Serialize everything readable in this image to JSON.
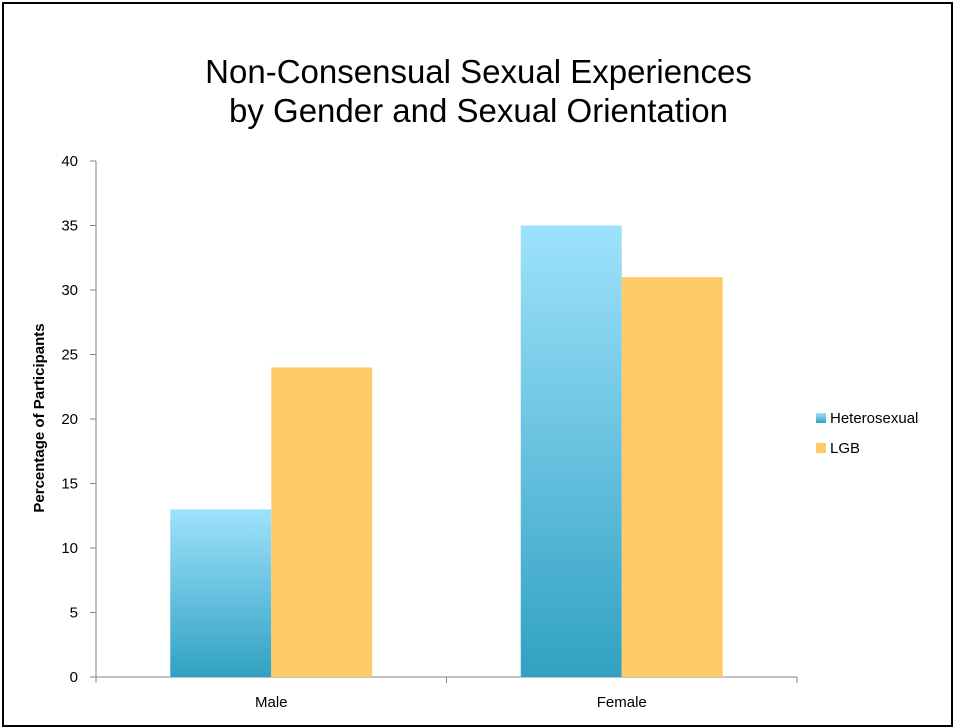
{
  "chart_data": {
    "type": "bar",
    "title_lines": [
      "Non-Consensual Sexual Experiences",
      "by Gender and Sexual Orientation"
    ],
    "xlabel": "",
    "ylabel": "Percentage of Participants",
    "categories": [
      "Male",
      "Female"
    ],
    "series": [
      {
        "name": "Heterosexual",
        "values": [
          13,
          35
        ],
        "color_top": "#9EE2FC",
        "color_bottom": "#31A1C2"
      },
      {
        "name": "LGB",
        "values": [
          24,
          31
        ],
        "color": "#FECB6A"
      }
    ],
    "ylim": [
      0,
      40
    ],
    "yticks": [
      0,
      5,
      10,
      15,
      20,
      25,
      30,
      35,
      40
    ],
    "grid": false,
    "legend_position": "right"
  }
}
